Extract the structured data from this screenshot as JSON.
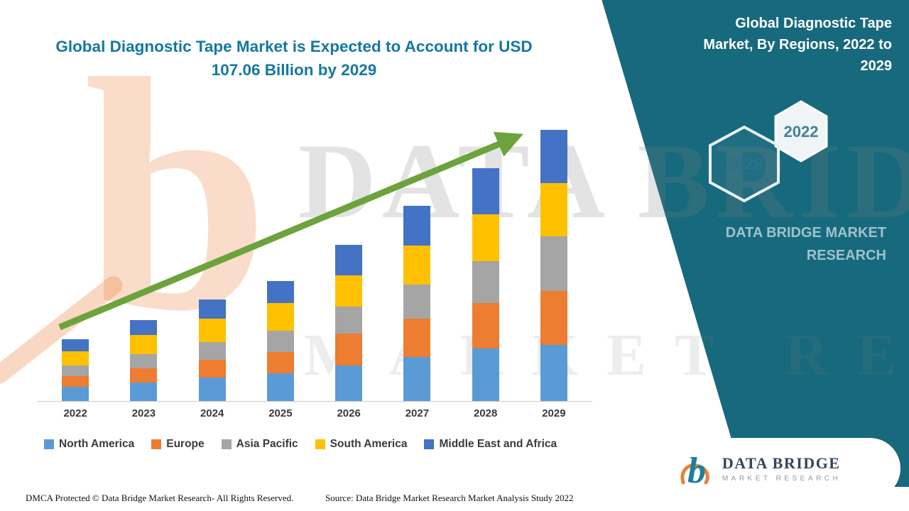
{
  "title": {
    "line1": "Global Diagnostic Tape Market is Expected to Account for USD",
    "line2": "107.06 Billion by 2029"
  },
  "panel": {
    "title_lines": [
      "Global Diagnostic Tape",
      "Market, By Regions, 2022 to",
      "2029"
    ],
    "hexagon_front": "2029",
    "hexagon_back": "2022",
    "brand_lines": [
      "DATA BRIDGE MARKET",
      "RESEARCH"
    ]
  },
  "watermark": {
    "letter": "b",
    "line1": "DATA BRIDGE",
    "line2": "MARKET RESEARCH"
  },
  "chart_data": {
    "type": "bar",
    "stacked": true,
    "title": "Global Diagnostic Tape Market, By Regions, 2022 to 2029",
    "xlabel": "",
    "ylabel": "",
    "units": "USD Billion",
    "y_axis_visible": false,
    "gridlines": false,
    "legend_position": "bottom",
    "ylim": [
      0,
      110
    ],
    "categories": [
      "2022",
      "2023",
      "2024",
      "2025",
      "2026",
      "2027",
      "2028",
      "2029"
    ],
    "series": [
      {
        "name": "North America",
        "color": "#5B9BD5",
        "values": [
          5.6,
          7.4,
          9.2,
          11.0,
          14.0,
          17.4,
          20.8,
          22.1
        ]
      },
      {
        "name": "Europe",
        "color": "#ED7D31",
        "values": [
          4.2,
          5.6,
          7.0,
          8.4,
          12.6,
          15.0,
          18.0,
          21.3
        ]
      },
      {
        "name": "Asia Pacific",
        "color": "#A5A5A5",
        "values": [
          4.2,
          5.6,
          7.0,
          8.4,
          10.7,
          13.6,
          16.4,
          21.6
        ]
      },
      {
        "name": "South America",
        "color": "#FFC000",
        "values": [
          5.6,
          7.4,
          9.2,
          11.0,
          12.3,
          15.5,
          18.6,
          21.0
        ]
      },
      {
        "name": "Middle East and Africa",
        "color": "#4472C4",
        "values": [
          4.8,
          6.0,
          7.6,
          8.7,
          12.0,
          15.5,
          18.2,
          21.06
        ]
      }
    ],
    "totals": [
      24.4,
      32.0,
      40.0,
      47.5,
      61.6,
      77.0,
      92.0,
      107.06
    ],
    "annotations": [
      "green upward trend arrow across bars"
    ],
    "arrow_color": "#6CA33C"
  },
  "logo": {
    "name": "DATA BRIDGE",
    "tagline": "MARKET RESEARCH"
  },
  "footer": {
    "left": "DMCA Protected © Data Bridge Market Research- All Rights Reserved.",
    "source": "Source: Data Bridge Market Research Market Analysis Study 2022"
  }
}
